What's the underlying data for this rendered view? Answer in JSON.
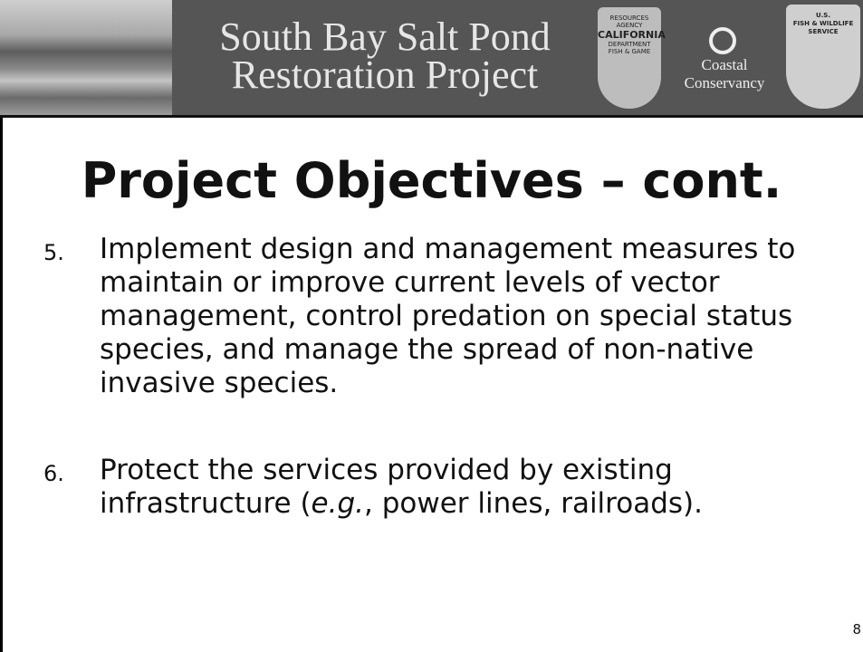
{
  "header": {
    "title_lines": [
      "South Bay Salt Pond",
      "Restoration Project"
    ],
    "logos": {
      "california": [
        "RESOURCES AGENCY",
        "CALIFORNIA",
        "DEPARTMENT",
        "FISH & GAME"
      ],
      "coastal": [
        "Coastal",
        "Conservancy"
      ],
      "usfws": [
        "U.S.",
        "FISH & WILDLIFE",
        "SERVICE"
      ]
    }
  },
  "title": "Project Objectives – cont.",
  "items": [
    {
      "number": "5.",
      "parts": [
        "Implement design and management measures to maintain or improve current levels of vector management, control predation on special status species, and manage the spread of non-native invasive species."
      ]
    },
    {
      "number": "6.",
      "parts": [
        "Protect the services provided by existing infrastructure (",
        "e.g.",
        ", power lines, railroads)."
      ]
    }
  ],
  "page_number": "8"
}
